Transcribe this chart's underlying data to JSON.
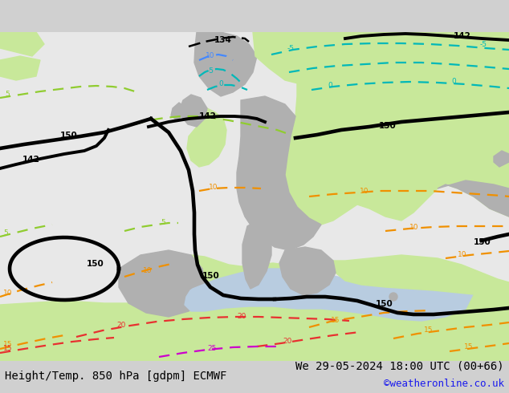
{
  "title_left": "Height/Temp. 850 hPa [gdpm] ECMWF",
  "title_right": "We 29-05-2024 18:00 UTC (00+66)",
  "credit": "©weatheronline.co.uk",
  "bg_ocean": "#e8e8e8",
  "land_green": "#c8e89a",
  "land_gray": "#b0b0b0",
  "black": "#000000",
  "green_c": "#90cc30",
  "cyan_c": "#00b8b8",
  "blue_c": "#4488ff",
  "orange_c": "#f09000",
  "red_c": "#e83030",
  "magenta_c": "#cc00cc",
  "lw_black": 2.8,
  "lw_temp": 1.6,
  "title_fontsize": 10,
  "credit_fontsize": 9
}
